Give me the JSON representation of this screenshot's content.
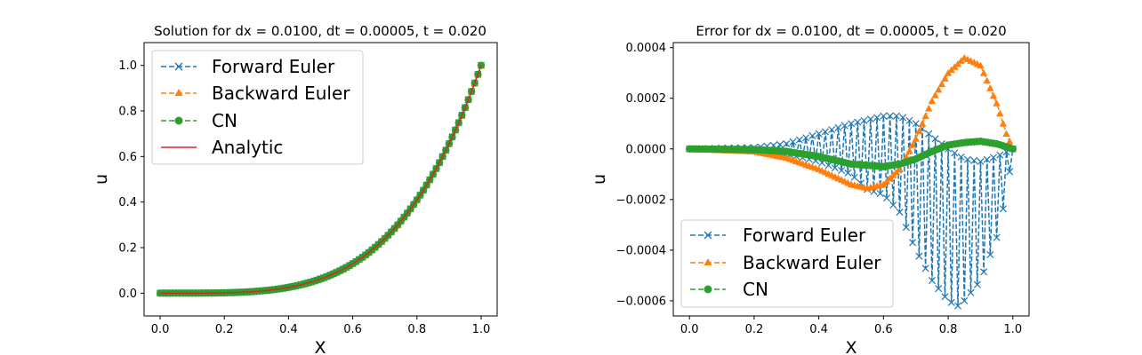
{
  "colors": {
    "forward": "#1f77b4",
    "backward": "#ff7f0e",
    "cn": "#2ca02c",
    "analytic": "#d62728"
  },
  "chart_data": [
    {
      "type": "line",
      "title": "Solution for dx = 0.0100, dt = 0.00005, t = 0.020",
      "xlabel": "X",
      "ylabel": "u",
      "xlim": [
        -0.05,
        1.05
      ],
      "ylim": [
        -0.1,
        1.1
      ],
      "xticks": [
        "0.0",
        "0.2",
        "0.4",
        "0.6",
        "0.8",
        "1.0"
      ],
      "yticks": [
        "0.0",
        "0.2",
        "0.4",
        "0.6",
        "0.8",
        "1.0"
      ],
      "legend_placement": "upper-left",
      "x_samples": {
        "start": 0.0,
        "stop": 1.0,
        "count": 101
      },
      "series": [
        {
          "name": "Forward Euler",
          "style": "dashed",
          "marker": "x",
          "color_key": "forward",
          "curve": "u(x) = x^4",
          "values_at": {
            "x": [
              0,
              0.2,
              0.4,
              0.5,
              0.6,
              0.7,
              0.8,
              0.9,
              1.0
            ],
            "y": [
              0,
              0.0016,
              0.0256,
              0.0625,
              0.1296,
              0.2401,
              0.4096,
              0.6561,
              1.0
            ]
          }
        },
        {
          "name": "Backward Euler",
          "style": "dashed",
          "marker": "triangle",
          "color_key": "backward",
          "curve": "u(x) = x^4",
          "values_at": {
            "x": [
              0,
              0.2,
              0.4,
              0.5,
              0.6,
              0.7,
              0.8,
              0.9,
              1.0
            ],
            "y": [
              0,
              0.0016,
              0.0256,
              0.0625,
              0.1296,
              0.2401,
              0.4096,
              0.6561,
              1.0
            ]
          }
        },
        {
          "name": "CN",
          "style": "dashed",
          "marker": "circle",
          "color_key": "cn",
          "curve": "u(x) = x^4",
          "values_at": {
            "x": [
              0,
              0.2,
              0.4,
              0.5,
              0.6,
              0.7,
              0.8,
              0.9,
              1.0
            ],
            "y": [
              0,
              0.0016,
              0.0256,
              0.0625,
              0.1296,
              0.2401,
              0.4096,
              0.6561,
              1.0
            ]
          }
        },
        {
          "name": "Analytic",
          "style": "solid",
          "marker": "none",
          "color_key": "analytic",
          "curve": "u(x) = x^4",
          "values_at": {
            "x": [
              0,
              0.2,
              0.4,
              0.5,
              0.6,
              0.7,
              0.8,
              0.9,
              1.0
            ],
            "y": [
              0,
              0.0016,
              0.0256,
              0.0625,
              0.1296,
              0.2401,
              0.4096,
              0.6561,
              1.0
            ]
          }
        }
      ]
    },
    {
      "type": "line",
      "title": "Error for dx = 0.0100, dt = 0.00005, t = 0.020",
      "xlabel": "X",
      "ylabel": "u",
      "xlim": [
        -0.05,
        1.05
      ],
      "ylim": [
        -0.00066,
        0.00042
      ],
      "xticks": [
        "0.0",
        "0.2",
        "0.4",
        "0.6",
        "0.8",
        "1.0"
      ],
      "yticks": [
        "−0.0006",
        "−0.0004",
        "−0.0002",
        "0.0000",
        "0.0002",
        "0.0004"
      ],
      "ytick_values": [
        -0.0006,
        -0.0004,
        -0.0002,
        0.0,
        0.0002,
        0.0004
      ],
      "legend_placement": "lower-left",
      "x_samples": {
        "start": 0.0,
        "stop": 1.0,
        "count": 101
      },
      "series": [
        {
          "name": "Forward Euler",
          "style": "dashed",
          "marker": "x",
          "color_key": "forward",
          "description": "alternating sawtooth oscillation between an upper and a lower envelope",
          "upper_envelope": {
            "x": [
              0,
              0.2,
              0.3,
              0.4,
              0.5,
              0.6,
              0.65,
              0.7,
              0.75,
              0.8,
              0.85,
              0.9,
              0.95,
              1.0
            ],
            "y": [
              0,
              5e-06,
              2e-05,
              6e-05,
              0.0001,
              0.00013,
              0.00013,
              0.0001,
              5e-05,
              0.0,
              -4e-05,
              -5e-05,
              -3e-05,
              0.0
            ]
          },
          "lower_envelope": {
            "x": [
              0,
              0.2,
              0.3,
              0.4,
              0.5,
              0.55,
              0.6,
              0.65,
              0.7,
              0.75,
              0.8,
              0.83,
              0.85,
              0.9,
              0.95,
              0.98,
              1.0
            ],
            "y": [
              0,
              -5e-06,
              -2e-05,
              -5e-05,
              -0.0001,
              -0.00016,
              -0.00018,
              -0.00025,
              -0.0004,
              -0.00052,
              -0.0006,
              -0.00062,
              -0.0006,
              -0.00052,
              -0.00035,
              -0.00018,
              0.0
            ]
          }
        },
        {
          "name": "Backward Euler",
          "style": "dashed",
          "marker": "triangle",
          "color_key": "backward",
          "values_at": {
            "x": [
              0,
              0.2,
              0.3,
              0.4,
              0.5,
              0.55,
              0.6,
              0.65,
              0.7,
              0.75,
              0.8,
              0.85,
              0.9,
              0.95,
              0.98,
              1.0
            ],
            "y": [
              0,
              -1e-05,
              -3.5e-05,
              -8e-05,
              -0.00014,
              -0.000155,
              -0.00014,
              -8e-05,
              4e-05,
              0.00019,
              0.0003,
              0.00036,
              0.00033,
              0.00018,
              6e-05,
              0.0
            ]
          }
        },
        {
          "name": "CN",
          "style": "dashed",
          "marker": "circle",
          "color_key": "cn",
          "values_at": {
            "x": [
              0,
              0.2,
              0.3,
              0.4,
              0.5,
              0.6,
              0.65,
              0.7,
              0.75,
              0.8,
              0.85,
              0.9,
              0.95,
              1.0
            ],
            "y": [
              0,
              -3e-06,
              -1e-05,
              -3e-05,
              -6e-05,
              -7e-05,
              -6e-05,
              -4e-05,
              -1e-05,
              1.5e-05,
              2.5e-05,
              3e-05,
              2e-05,
              0.0
            ]
          }
        }
      ]
    }
  ]
}
